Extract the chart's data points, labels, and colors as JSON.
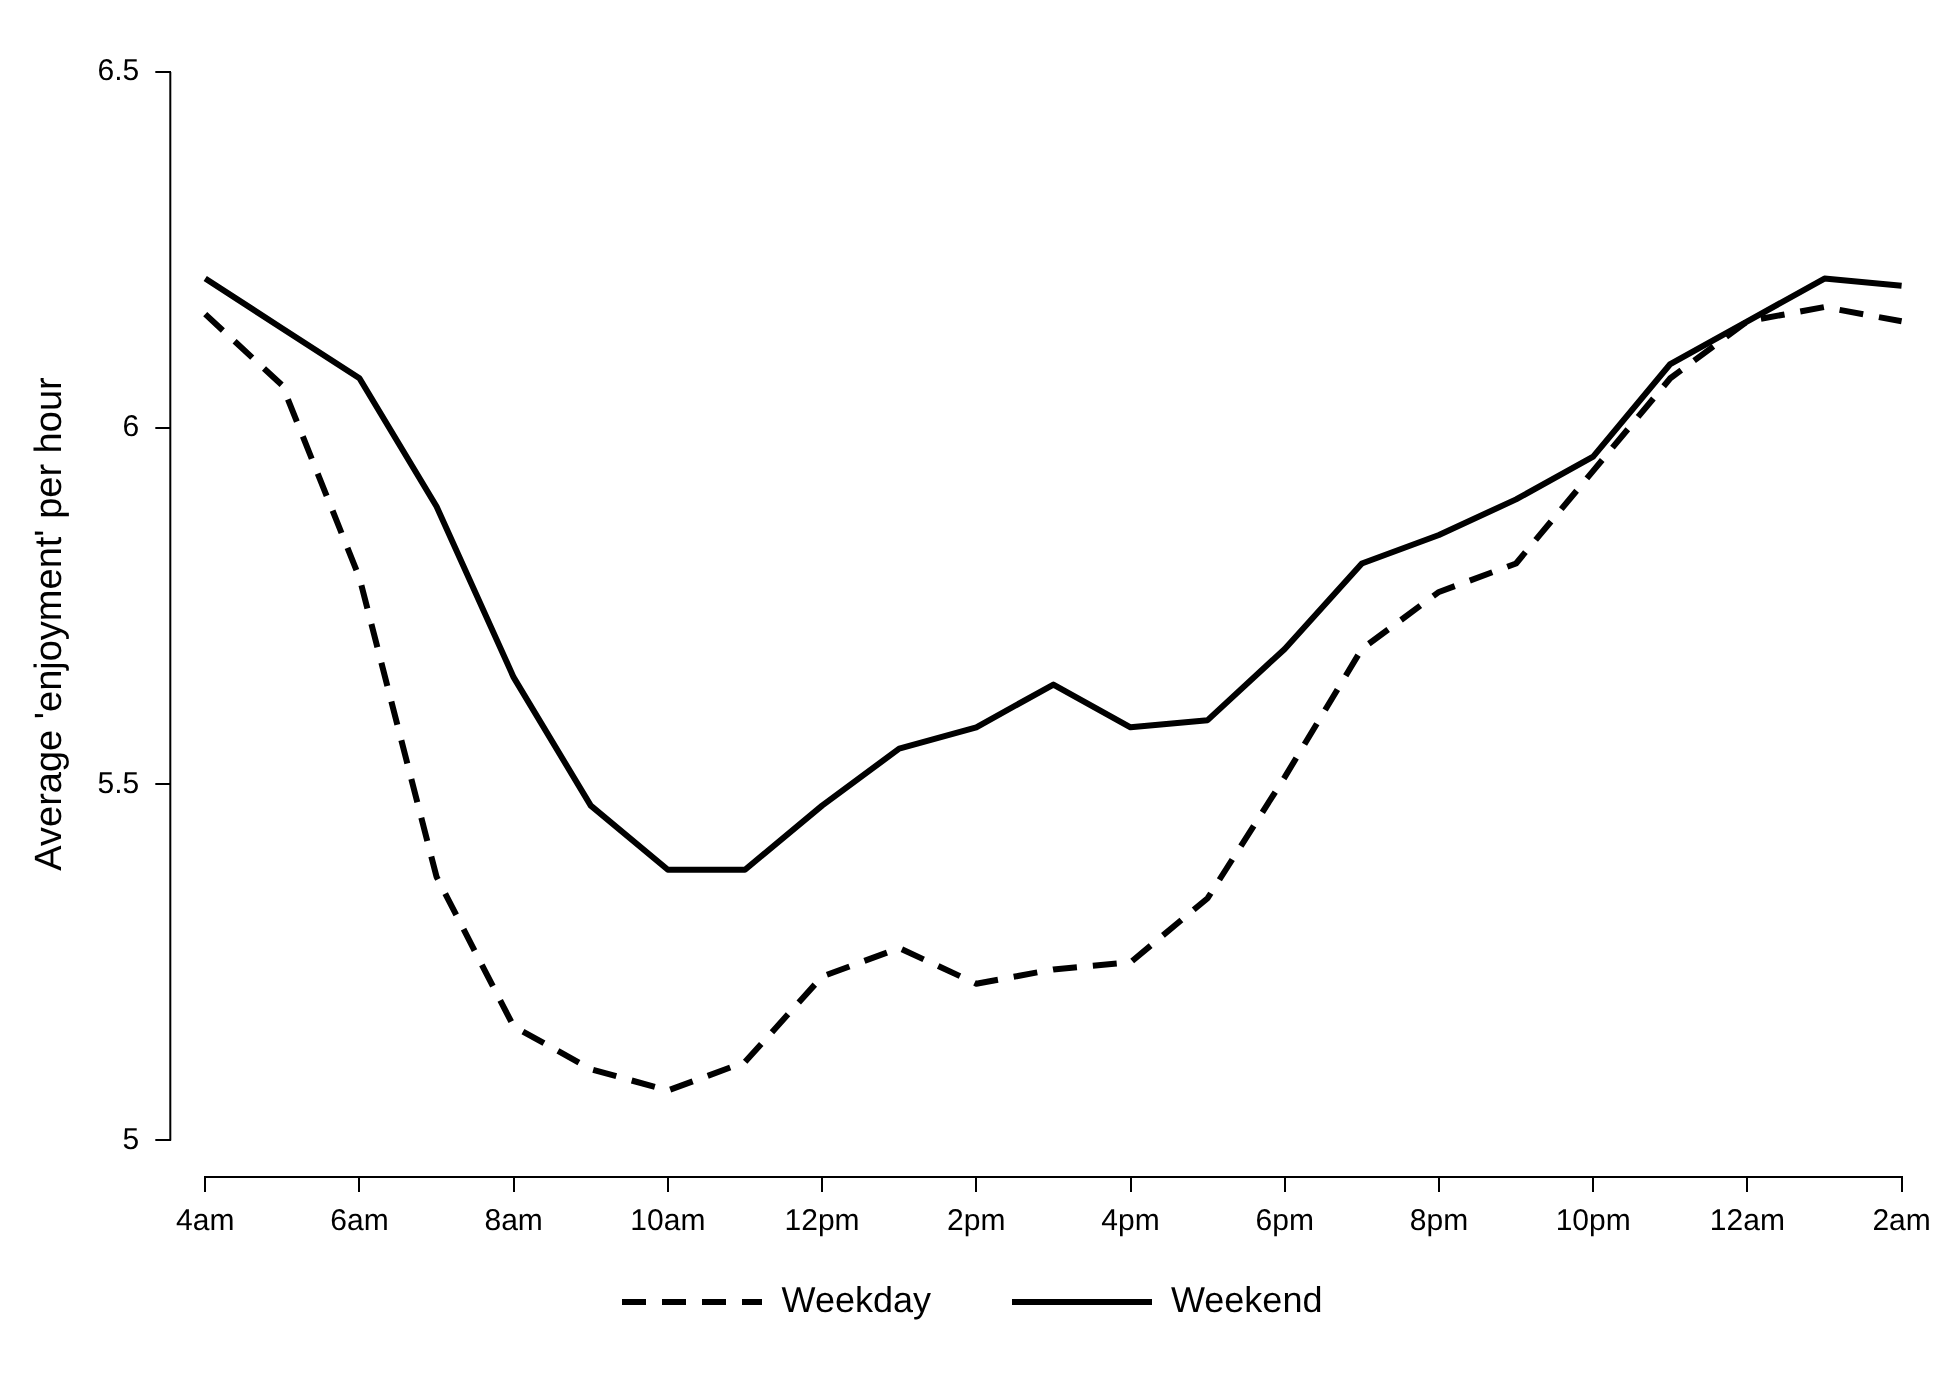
{
  "chart_data": {
    "type": "line",
    "ylabel": "Average 'enjoyment' per hour",
    "categories": [
      "4am",
      null,
      "6am",
      null,
      "8am",
      null,
      "10am",
      null,
      "12pm",
      null,
      "2pm",
      null,
      "4pm",
      null,
      "6pm",
      null,
      "8pm",
      null,
      "10pm",
      null,
      "12am",
      null,
      "2am"
    ],
    "ylim": [
      4.95,
      6.5
    ],
    "yticks": [
      5,
      5.5,
      6,
      6.5
    ],
    "grid": false,
    "legend": "bottom",
    "marker": "none",
    "series": [
      {
        "name": "Weekday",
        "color": "#000000",
        "line_style": "dashed",
        "values": [
          6.16,
          6.06,
          5.79,
          5.37,
          5.16,
          5.1,
          5.07,
          5.11,
          5.23,
          5.27,
          5.22,
          5.24,
          5.25,
          5.34,
          5.51,
          5.69,
          5.77,
          5.81,
          5.94,
          6.07,
          6.15,
          6.17,
          6.15
        ]
      },
      {
        "name": "Weekend",
        "color": "#000000",
        "line_style": "solid",
        "values": [
          6.21,
          6.14,
          6.07,
          5.89,
          5.65,
          5.47,
          5.38,
          5.38,
          5.47,
          5.55,
          5.58,
          5.64,
          5.58,
          5.59,
          5.69,
          5.81,
          5.85,
          5.9,
          5.96,
          6.09,
          6.15,
          6.21,
          6.2
        ]
      }
    ]
  }
}
